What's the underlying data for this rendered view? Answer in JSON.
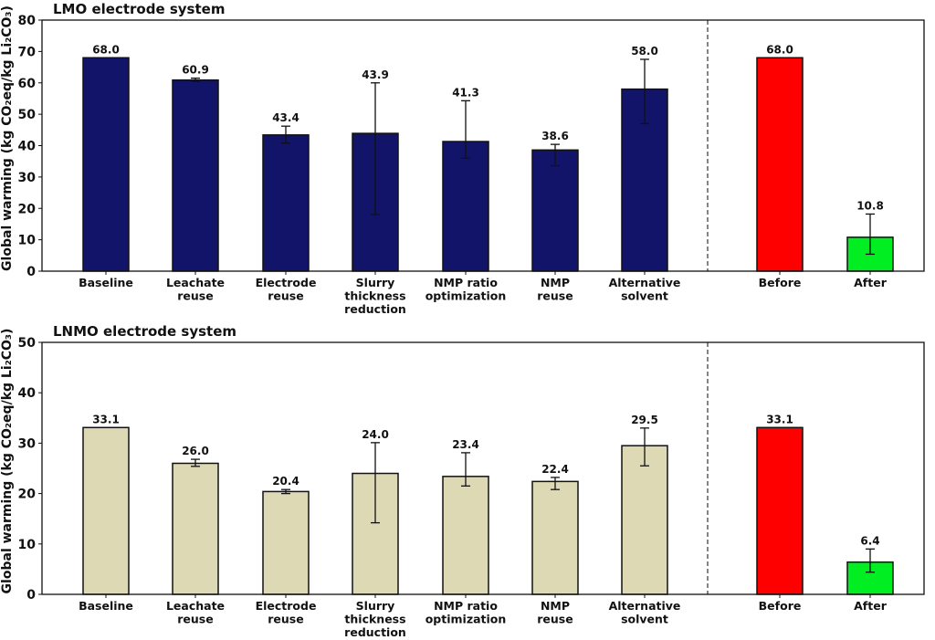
{
  "chart_data": [
    {
      "type": "bar",
      "title": "LMO electrode system",
      "ylabel": "Global warming (kg CO₂eq/kg Li₂CO₃)",
      "ylim": [
        0,
        80
      ],
      "yticks": [
        0,
        10,
        20,
        30,
        40,
        50,
        60,
        70,
        80
      ],
      "categories": [
        "Baseline",
        "Leachate reuse",
        "Electrode reuse",
        "Slurry thickness reduction",
        "NMP ratio optimization",
        "NMP reuse",
        "Alternative solvent",
        "Before",
        "After"
      ],
      "category_lines": [
        [
          "Baseline"
        ],
        [
          "Leachate",
          "reuse"
        ],
        [
          "Electrode",
          "reuse"
        ],
        [
          "Slurry",
          "thickness",
          "reduction"
        ],
        [
          "NMP ratio",
          "optimization"
        ],
        [
          "NMP",
          "reuse"
        ],
        [
          "Alternative",
          "solvent"
        ],
        [
          "Before"
        ],
        [
          "After"
        ]
      ],
      "values": [
        68.0,
        60.9,
        43.4,
        43.9,
        41.3,
        38.6,
        58.0,
        68.0,
        10.8
      ],
      "labels": [
        "68.0",
        "60.9",
        "43.4",
        "43.9",
        "41.3",
        "38.6",
        "58.0",
        "68.0",
        "10.8"
      ],
      "error_low": [
        null,
        60.4,
        40.8,
        18.0,
        36.0,
        33.6,
        47.0,
        null,
        5.4
      ],
      "error_high": [
        null,
        61.5,
        46.2,
        60.0,
        54.3,
        40.4,
        67.5,
        null,
        18.2
      ],
      "colors": [
        "#121469",
        "#121469",
        "#121469",
        "#121469",
        "#121469",
        "#121469",
        "#121469",
        "#ff0000",
        "#00ee22"
      ],
      "separator_after_index": 6
    },
    {
      "type": "bar",
      "title": "LNMO electrode system",
      "ylabel": "Global warming (kg CO₂eq/kg Li₂CO₃)",
      "ylim": [
        0,
        50
      ],
      "yticks": [
        0,
        10,
        20,
        30,
        40,
        50
      ],
      "categories": [
        "Baseline",
        "Leachate reuse",
        "Electrode reuse",
        "Slurry thickness reduction",
        "NMP ratio optimization",
        "NMP reuse",
        "Alternative solvent",
        "Before",
        "After"
      ],
      "category_lines": [
        [
          "Baseline"
        ],
        [
          "Leachate",
          "reuse"
        ],
        [
          "Electrode",
          "reuse"
        ],
        [
          "Slurry",
          "thickness",
          "reduction"
        ],
        [
          "NMP ratio",
          "optimization"
        ],
        [
          "NMP",
          "reuse"
        ],
        [
          "Alternative",
          "solvent"
        ],
        [
          "Before"
        ],
        [
          "After"
        ]
      ],
      "values": [
        33.1,
        26.0,
        20.4,
        24.0,
        23.4,
        22.4,
        29.5,
        33.1,
        6.4
      ],
      "labels": [
        "33.1",
        "26.0",
        "20.4",
        "24.0",
        "23.4",
        "22.4",
        "29.5",
        "33.1",
        "6.4"
      ],
      "error_low": [
        null,
        25.4,
        20.0,
        14.2,
        21.5,
        20.8,
        25.5,
        null,
        4.4
      ],
      "error_high": [
        null,
        26.8,
        20.8,
        30.1,
        28.1,
        23.2,
        33.0,
        null,
        9.0
      ],
      "colors": [
        "#dcd9b4",
        "#dcd9b4",
        "#dcd9b4",
        "#dcd9b4",
        "#dcd9b4",
        "#dcd9b4",
        "#dcd9b4",
        "#ff0000",
        "#00ee22"
      ],
      "separator_after_index": 6
    }
  ]
}
